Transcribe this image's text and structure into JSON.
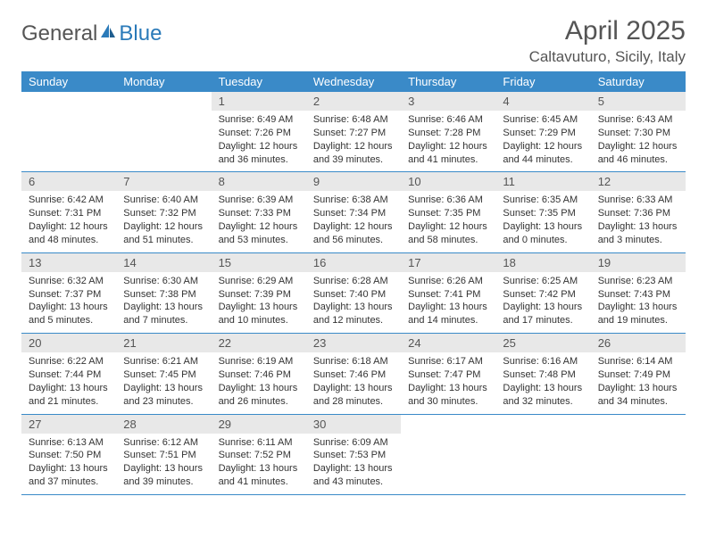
{
  "logo": {
    "text1": "General",
    "text2": "Blue"
  },
  "title": "April 2025",
  "location": "Caltavuturo, Sicily, Italy",
  "colors": {
    "header_bg": "#3a8ac8",
    "header_text": "#ffffff",
    "daynum_bg": "#e8e8e8",
    "border": "#3a8ac8",
    "text": "#333333",
    "title_text": "#555555"
  },
  "weekdays": [
    "Sunday",
    "Monday",
    "Tuesday",
    "Wednesday",
    "Thursday",
    "Friday",
    "Saturday"
  ],
  "weeks": [
    [
      {
        "empty": true
      },
      {
        "empty": true
      },
      {
        "n": "1",
        "sunrise": "Sunrise: 6:49 AM",
        "sunset": "Sunset: 7:26 PM",
        "daylight": "Daylight: 12 hours and 36 minutes."
      },
      {
        "n": "2",
        "sunrise": "Sunrise: 6:48 AM",
        "sunset": "Sunset: 7:27 PM",
        "daylight": "Daylight: 12 hours and 39 minutes."
      },
      {
        "n": "3",
        "sunrise": "Sunrise: 6:46 AM",
        "sunset": "Sunset: 7:28 PM",
        "daylight": "Daylight: 12 hours and 41 minutes."
      },
      {
        "n": "4",
        "sunrise": "Sunrise: 6:45 AM",
        "sunset": "Sunset: 7:29 PM",
        "daylight": "Daylight: 12 hours and 44 minutes."
      },
      {
        "n": "5",
        "sunrise": "Sunrise: 6:43 AM",
        "sunset": "Sunset: 7:30 PM",
        "daylight": "Daylight: 12 hours and 46 minutes."
      }
    ],
    [
      {
        "n": "6",
        "sunrise": "Sunrise: 6:42 AM",
        "sunset": "Sunset: 7:31 PM",
        "daylight": "Daylight: 12 hours and 48 minutes."
      },
      {
        "n": "7",
        "sunrise": "Sunrise: 6:40 AM",
        "sunset": "Sunset: 7:32 PM",
        "daylight": "Daylight: 12 hours and 51 minutes."
      },
      {
        "n": "8",
        "sunrise": "Sunrise: 6:39 AM",
        "sunset": "Sunset: 7:33 PM",
        "daylight": "Daylight: 12 hours and 53 minutes."
      },
      {
        "n": "9",
        "sunrise": "Sunrise: 6:38 AM",
        "sunset": "Sunset: 7:34 PM",
        "daylight": "Daylight: 12 hours and 56 minutes."
      },
      {
        "n": "10",
        "sunrise": "Sunrise: 6:36 AM",
        "sunset": "Sunset: 7:35 PM",
        "daylight": "Daylight: 12 hours and 58 minutes."
      },
      {
        "n": "11",
        "sunrise": "Sunrise: 6:35 AM",
        "sunset": "Sunset: 7:35 PM",
        "daylight": "Daylight: 13 hours and 0 minutes."
      },
      {
        "n": "12",
        "sunrise": "Sunrise: 6:33 AM",
        "sunset": "Sunset: 7:36 PM",
        "daylight": "Daylight: 13 hours and 3 minutes."
      }
    ],
    [
      {
        "n": "13",
        "sunrise": "Sunrise: 6:32 AM",
        "sunset": "Sunset: 7:37 PM",
        "daylight": "Daylight: 13 hours and 5 minutes."
      },
      {
        "n": "14",
        "sunrise": "Sunrise: 6:30 AM",
        "sunset": "Sunset: 7:38 PM",
        "daylight": "Daylight: 13 hours and 7 minutes."
      },
      {
        "n": "15",
        "sunrise": "Sunrise: 6:29 AM",
        "sunset": "Sunset: 7:39 PM",
        "daylight": "Daylight: 13 hours and 10 minutes."
      },
      {
        "n": "16",
        "sunrise": "Sunrise: 6:28 AM",
        "sunset": "Sunset: 7:40 PM",
        "daylight": "Daylight: 13 hours and 12 minutes."
      },
      {
        "n": "17",
        "sunrise": "Sunrise: 6:26 AM",
        "sunset": "Sunset: 7:41 PM",
        "daylight": "Daylight: 13 hours and 14 minutes."
      },
      {
        "n": "18",
        "sunrise": "Sunrise: 6:25 AM",
        "sunset": "Sunset: 7:42 PM",
        "daylight": "Daylight: 13 hours and 17 minutes."
      },
      {
        "n": "19",
        "sunrise": "Sunrise: 6:23 AM",
        "sunset": "Sunset: 7:43 PM",
        "daylight": "Daylight: 13 hours and 19 minutes."
      }
    ],
    [
      {
        "n": "20",
        "sunrise": "Sunrise: 6:22 AM",
        "sunset": "Sunset: 7:44 PM",
        "daylight": "Daylight: 13 hours and 21 minutes."
      },
      {
        "n": "21",
        "sunrise": "Sunrise: 6:21 AM",
        "sunset": "Sunset: 7:45 PM",
        "daylight": "Daylight: 13 hours and 23 minutes."
      },
      {
        "n": "22",
        "sunrise": "Sunrise: 6:19 AM",
        "sunset": "Sunset: 7:46 PM",
        "daylight": "Daylight: 13 hours and 26 minutes."
      },
      {
        "n": "23",
        "sunrise": "Sunrise: 6:18 AM",
        "sunset": "Sunset: 7:46 PM",
        "daylight": "Daylight: 13 hours and 28 minutes."
      },
      {
        "n": "24",
        "sunrise": "Sunrise: 6:17 AM",
        "sunset": "Sunset: 7:47 PM",
        "daylight": "Daylight: 13 hours and 30 minutes."
      },
      {
        "n": "25",
        "sunrise": "Sunrise: 6:16 AM",
        "sunset": "Sunset: 7:48 PM",
        "daylight": "Daylight: 13 hours and 32 minutes."
      },
      {
        "n": "26",
        "sunrise": "Sunrise: 6:14 AM",
        "sunset": "Sunset: 7:49 PM",
        "daylight": "Daylight: 13 hours and 34 minutes."
      }
    ],
    [
      {
        "n": "27",
        "sunrise": "Sunrise: 6:13 AM",
        "sunset": "Sunset: 7:50 PM",
        "daylight": "Daylight: 13 hours and 37 minutes."
      },
      {
        "n": "28",
        "sunrise": "Sunrise: 6:12 AM",
        "sunset": "Sunset: 7:51 PM",
        "daylight": "Daylight: 13 hours and 39 minutes."
      },
      {
        "n": "29",
        "sunrise": "Sunrise: 6:11 AM",
        "sunset": "Sunset: 7:52 PM",
        "daylight": "Daylight: 13 hours and 41 minutes."
      },
      {
        "n": "30",
        "sunrise": "Sunrise: 6:09 AM",
        "sunset": "Sunset: 7:53 PM",
        "daylight": "Daylight: 13 hours and 43 minutes."
      },
      {
        "empty": true
      },
      {
        "empty": true
      },
      {
        "empty": true
      }
    ]
  ]
}
